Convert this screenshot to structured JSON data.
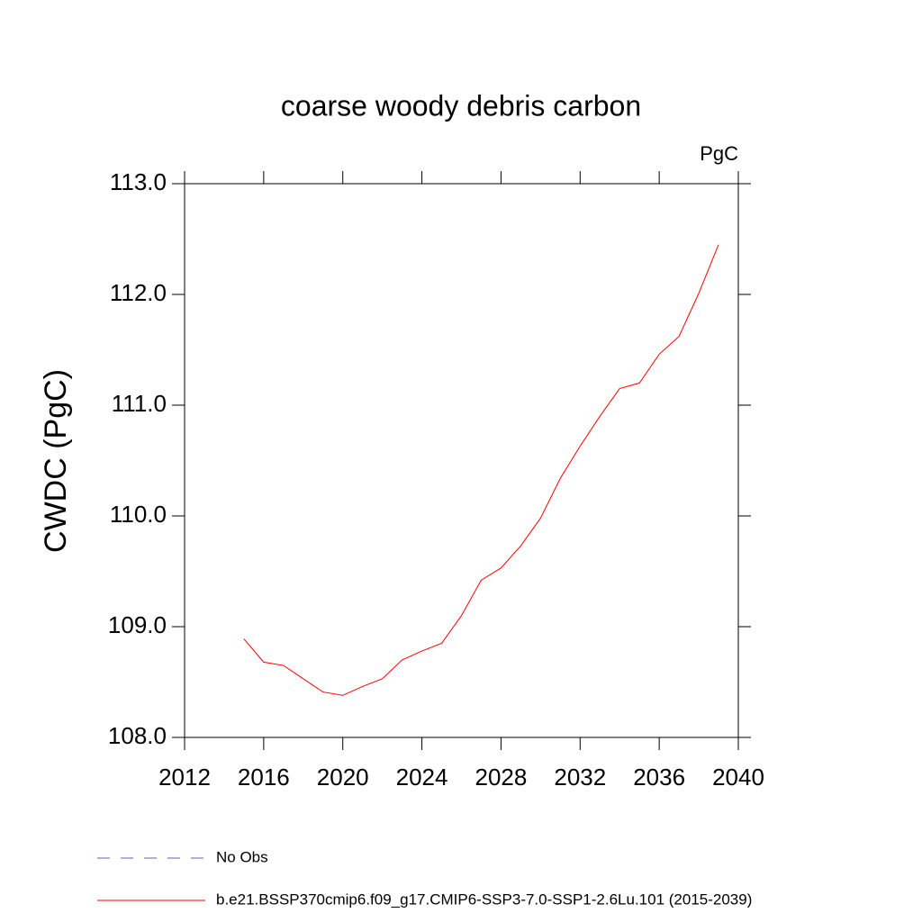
{
  "chart_data": {
    "type": "line",
    "title": "coarse woody debris carbon",
    "units_label": "PgC",
    "y_label": "CWDC  (PgC)",
    "x": [
      2015,
      2016,
      2017,
      2018,
      2019,
      2020,
      2021,
      2022,
      2023,
      2024,
      2025,
      2026,
      2027,
      2028,
      2029,
      2030,
      2031,
      2032,
      2033,
      2034,
      2035,
      2036,
      2037,
      2038,
      2039
    ],
    "series": [
      {
        "name": "No Obs",
        "color": "#6a5acd",
        "dashed": true,
        "values": [
          null,
          null,
          null,
          null,
          null,
          null,
          null,
          null,
          null,
          null,
          null,
          null,
          null,
          null,
          null,
          null,
          null,
          null,
          null,
          null,
          null,
          null,
          null,
          null,
          null
        ]
      },
      {
        "name": "b.e21.BSSP370cmip6.f09_g17.CMIP6-SSP3-7.0-SSP1-2.6Lu.101 (2015-2039)",
        "color": "#ff0000",
        "dashed": false,
        "values": [
          108.89,
          108.68,
          108.65,
          108.53,
          108.41,
          108.38,
          108.46,
          108.53,
          108.7,
          108.78,
          108.85,
          109.1,
          109.42,
          109.53,
          109.73,
          109.98,
          110.34,
          110.63,
          110.9,
          111.15,
          111.2,
          111.46,
          111.62,
          112.01,
          112.45
        ]
      }
    ],
    "xlim": [
      2012,
      2040
    ],
    "xticks": [
      2012,
      2016,
      2020,
      2024,
      2028,
      2032,
      2036,
      2040
    ],
    "ylim": [
      108,
      113
    ],
    "yticks": [
      {
        "value": 108,
        "label": "108.0"
      },
      {
        "value": 109,
        "label": "109.0"
      },
      {
        "value": 110,
        "label": "110.0"
      },
      {
        "value": 111,
        "label": "111.0"
      },
      {
        "value": 112,
        "label": "112.0"
      },
      {
        "value": 113,
        "label": "113.0"
      }
    ]
  }
}
